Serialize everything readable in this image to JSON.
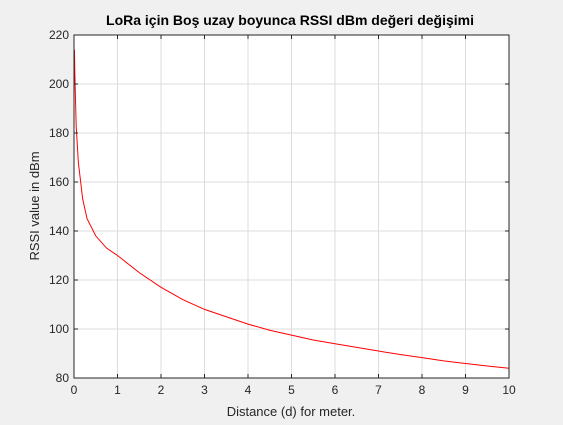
{
  "chart_data": {
    "type": "line",
    "title": "LoRa için Boş uzay boyunca RSSI dBm değeri değişimi",
    "xlabel": "Distance (d) for meter.",
    "ylabel": "RSSI value in dBm",
    "xlim": [
      0,
      10
    ],
    "ylim": [
      80,
      220
    ],
    "xticks": [
      "0",
      "1",
      "2",
      "3",
      "4",
      "5",
      "6",
      "7",
      "8",
      "9",
      "10"
    ],
    "yticks": [
      "80",
      "100",
      "120",
      "140",
      "160",
      "180",
      "200",
      "220"
    ],
    "grid": true,
    "series": [
      {
        "color": "#ff0000",
        "x": [
          0.01,
          0.02,
          0.05,
          0.1,
          0.2,
          0.3,
          0.5,
          0.75,
          1,
          1.5,
          2,
          2.5,
          3,
          3.5,
          4,
          4.5,
          5,
          5.5,
          6,
          6.5,
          7,
          7.5,
          8,
          8.5,
          9,
          9.5,
          10
        ],
        "y": [
          214,
          204,
          183,
          168,
          153,
          145,
          138,
          133,
          130,
          123,
          117,
          112,
          108,
          105,
          102,
          99.5,
          97.5,
          95.5,
          94,
          92.5,
          91,
          89.6,
          88.3,
          87,
          85.9,
          84.9,
          84
        ]
      }
    ]
  }
}
